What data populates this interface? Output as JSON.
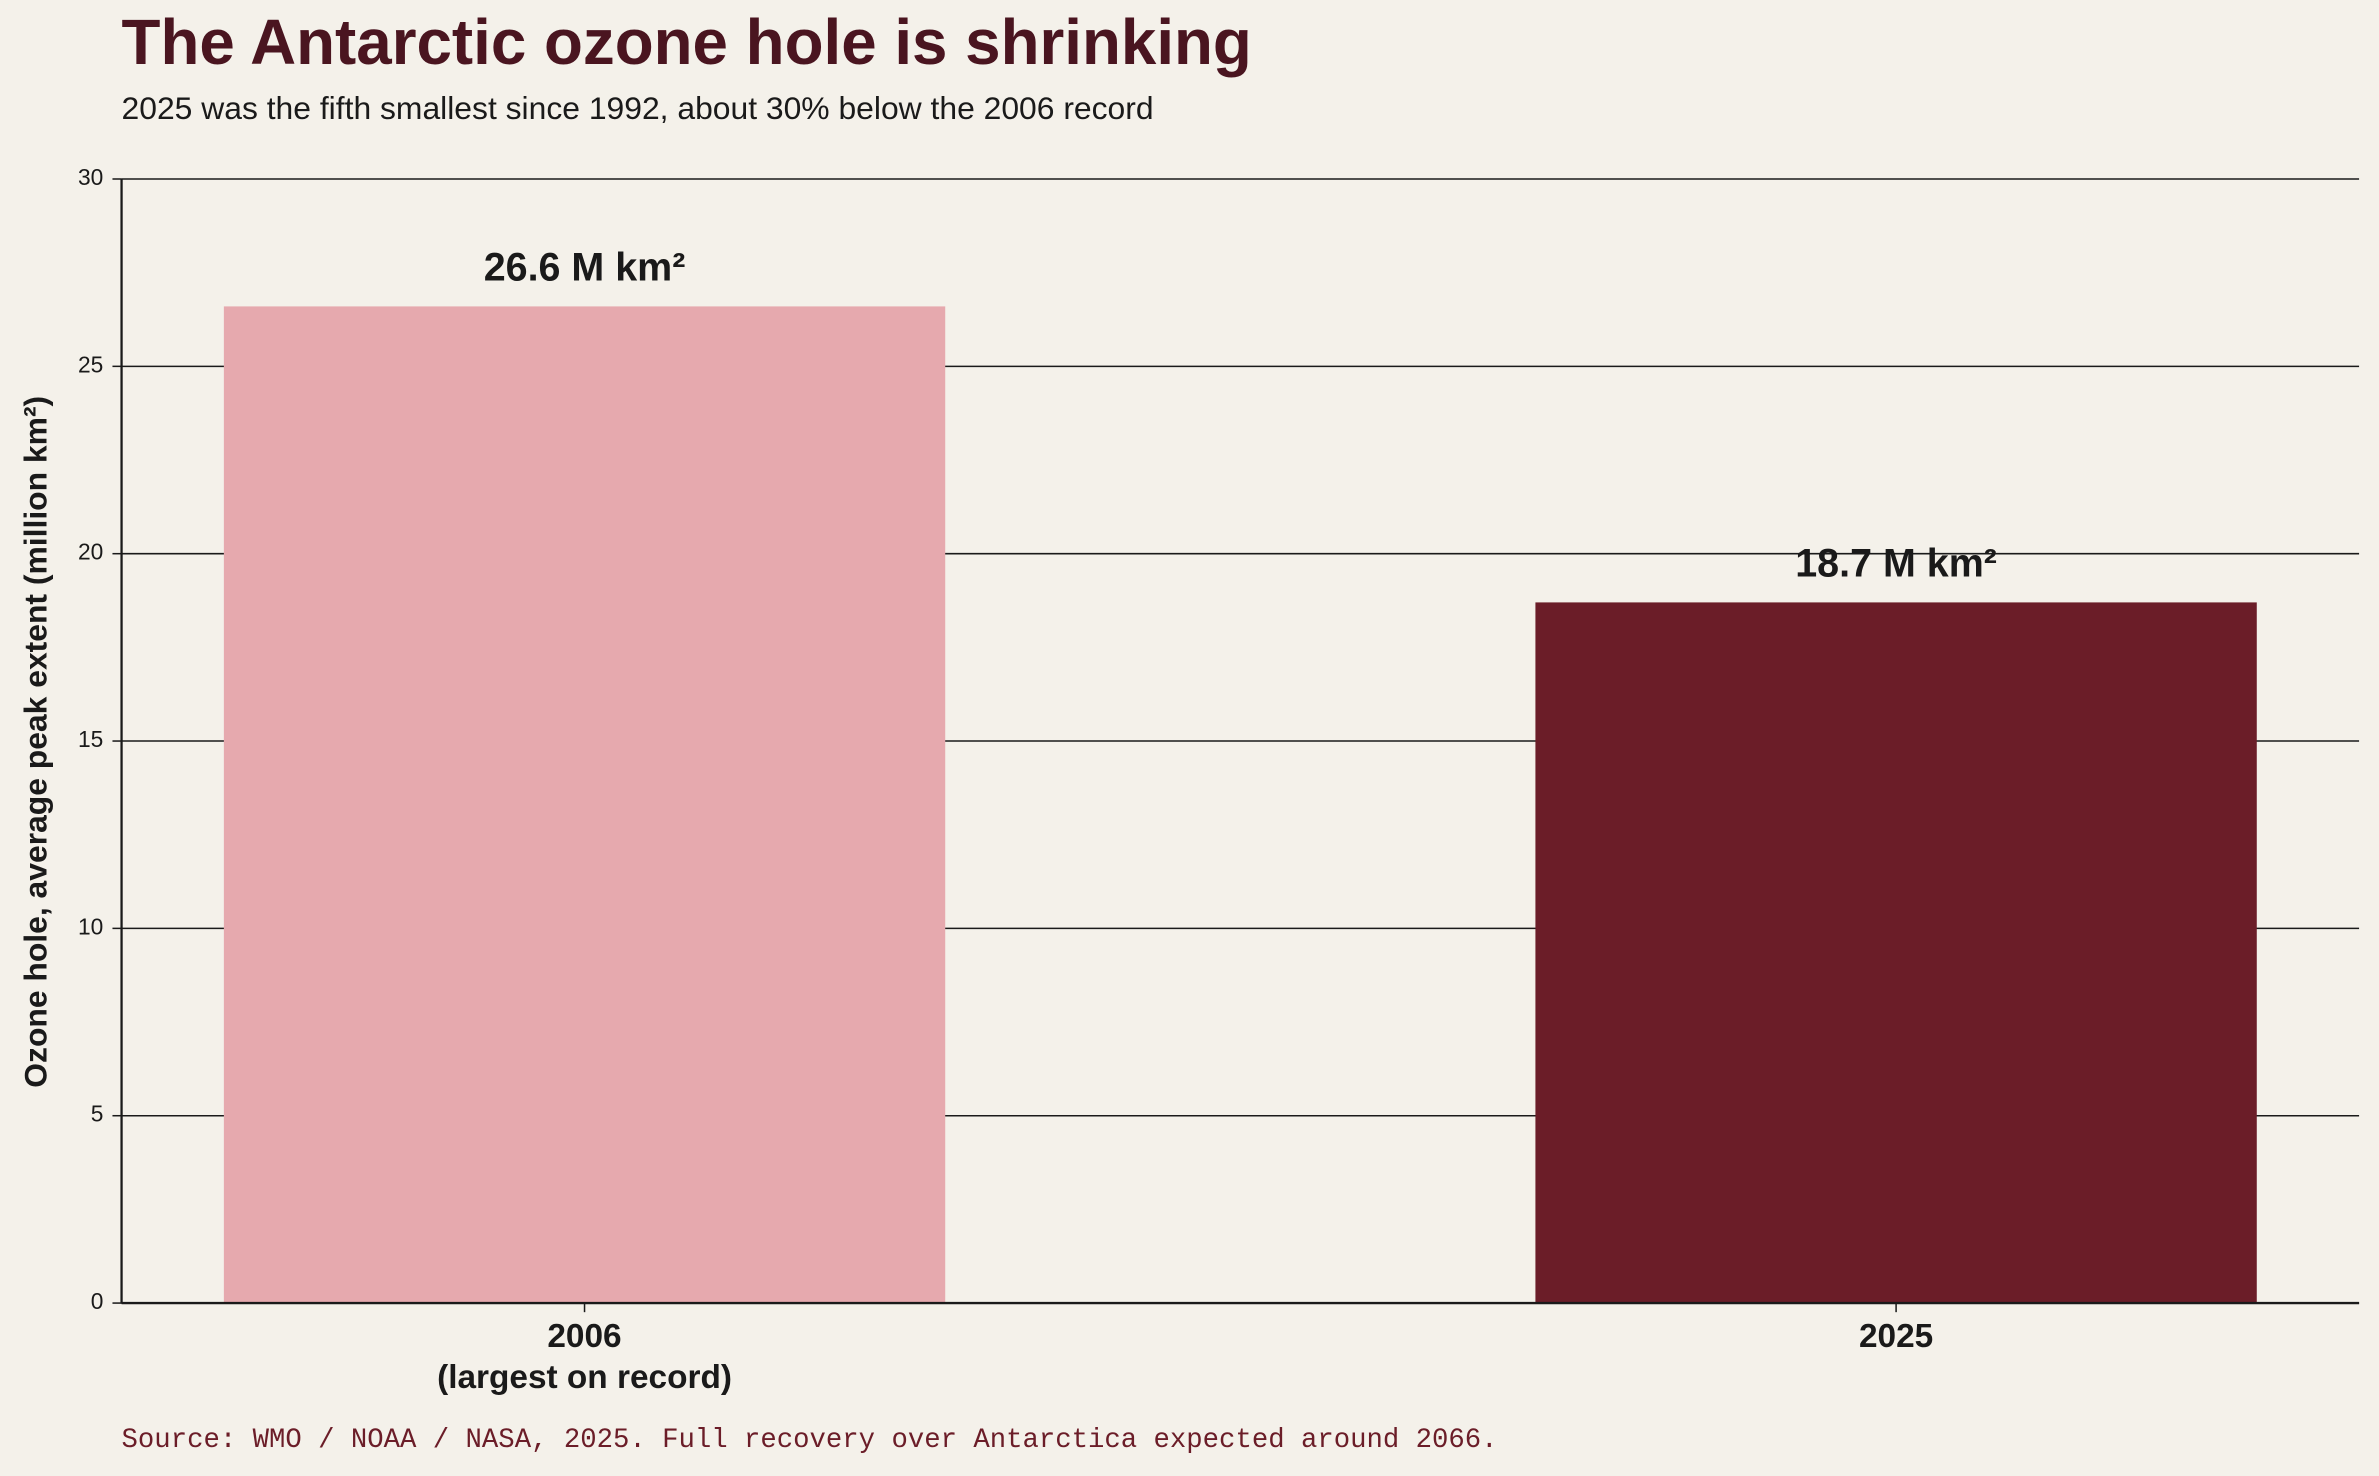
{
  "chart_data": {
    "type": "bar",
    "title": "The Antarctic ozone hole is shrinking",
    "subtitle": "2025 was the fifth smallest since 1992, about 30% below the 2006 record",
    "ylabel": "Ozone hole, average peak extent (million km²)",
    "categories": [
      "2006\n(largest on record)",
      "2025"
    ],
    "values": [
      26.6,
      18.7
    ],
    "value_labels": [
      "26.6 M km²",
      "18.7 M km²"
    ],
    "colors": [
      "#e6a9ae",
      "#6b1d28"
    ],
    "ylim": [
      0,
      30
    ],
    "yticks": [
      0,
      5,
      10,
      15,
      20,
      25,
      30
    ],
    "grid": true,
    "note": "Source: WMO / NOAA / NASA, 2025.  Full recovery over Antarctica expected around 2066."
  }
}
